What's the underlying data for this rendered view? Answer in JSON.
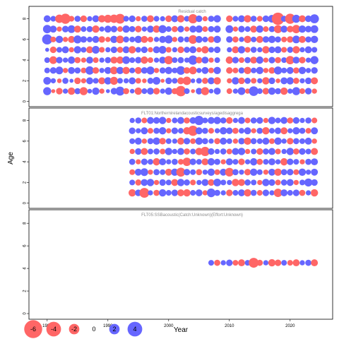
{
  "chart_data": {
    "type": "scatter",
    "variant": "bubble-residuals",
    "xlabel": "Year",
    "ylabel": "Age",
    "xlim": [
      1977,
      2027
    ],
    "x_ticks": [
      1980,
      1990,
      2000,
      2010,
      2020
    ],
    "ylim": [
      -0.5,
      9.2
    ],
    "y_ticks": [
      0,
      2,
      4,
      6,
      8
    ],
    "colors": {
      "positive": "#6666ff",
      "negative": "#ff6666"
    },
    "legend": {
      "placement": "bottom-left",
      "entries": [
        "-6",
        "-4",
        "-2",
        "0",
        "2",
        "4"
      ],
      "values": [
        -6,
        -4,
        -2,
        0,
        2,
        4
      ]
    },
    "panels": [
      {
        "title": "Residual catch",
        "years": [
          1980,
          1981,
          1982,
          1983,
          1984,
          1985,
          1986,
          1987,
          1988,
          1989,
          1990,
          1991,
          1992,
          1993,
          1994,
          1995,
          1996,
          1997,
          1998,
          1999,
          2000,
          2001,
          2002,
          2003,
          2004,
          2005,
          2006,
          2007,
          2008,
          2010,
          2011,
          2012,
          2013,
          2014,
          2015,
          2016,
          2017,
          2018,
          2019,
          2020,
          2021,
          2022,
          2023,
          2024
        ],
        "ages": [
          1,
          2,
          3,
          4,
          5,
          6,
          7,
          8
        ],
        "residuals": [
          [
            1.2,
            -0.3,
            -0.8,
            0.5,
            -1.0,
            0.7,
            -1.2,
            0.4,
            1.0,
            -0.5,
            0.3,
            0.8,
            1.5,
            -0.7,
            0.4,
            -1.0,
            0.6,
            0.9,
            -0.8,
            0.5,
            1.0,
            -0.7,
            -2.0,
            0.6,
            -0.3,
            0.8,
            -1.2,
            0.4,
            0.9,
            -0.6,
            0.5,
            1.1,
            -0.5,
            1.7,
            0.6,
            -0.8,
            1.0,
            0.7,
            -1.0,
            0.5,
            1.2,
            -0.6,
            0.8,
            -0.5
          ],
          [
            1.1,
            0.5,
            -0.4,
            0.7,
            0.3,
            -0.8,
            -0.5,
            0.9,
            0.6,
            -0.9,
            1.0,
            -1.2,
            0.6,
            0.5,
            0.9,
            -0.6,
            -0.4,
            0.7,
            1.1,
            -0.3,
            0.8,
            0.6,
            -0.9,
            -1.3,
            0.4,
            0.6,
            -0.7,
            0.9,
            -1.0,
            -0.5,
            1.0,
            -0.8,
            0.7,
            -0.6,
            0.5,
            -1.0,
            0.8,
            -0.4,
            0.9,
            1.0,
            -0.7,
            0.5,
            0.8,
            -0.9
          ],
          [
            0.6,
            0.8,
            1.1,
            -0.5,
            0.9,
            0.7,
            -0.6,
            1.3,
            -0.8,
            0.5,
            0.9,
            -1.1,
            1.0,
            -1.0,
            0.6,
            -0.9,
            0.8,
            1.2,
            -0.5,
            0.7,
            1.0,
            0.6,
            1.4,
            -0.8,
            -1.1,
            0.5,
            0.9,
            -0.6,
            1.0,
            -0.8,
            -0.6,
            0.7,
            -1.0,
            0.6,
            1.0,
            -0.5,
            -0.8,
            1.2,
            0.6,
            0.9,
            -0.7,
            1.0,
            0.5,
            0.8
          ],
          [
            0.6,
            -1.1,
            0.8,
            0.5,
            1.0,
            -0.7,
            -0.5,
            0.9,
            -0.6,
            0.5,
            0.7,
            -0.9,
            -1.0,
            1.1,
            0.6,
            0.8,
            -1.0,
            -0.6,
            0.5,
            0.9,
            -1.3,
            0.6,
            0.7,
            0.5,
            1.6,
            -0.8,
            0.9,
            -0.5,
            0.6,
            -1.0,
            0.8,
            -0.6,
            0.7,
            -0.9,
            1.0,
            -0.5,
            0.8,
            -0.7,
            0.6,
            -1.3,
            0.9,
            -0.8,
            0.5,
            1.2
          ],
          [
            0.3,
            -0.8,
            0.6,
            0.9,
            -0.5,
            1.0,
            0.6,
            -0.9,
            1.1,
            -0.6,
            0.5,
            0.8,
            -0.7,
            0.9,
            -1.0,
            0.6,
            0.8,
            -0.5,
            0.9,
            1.1,
            -0.6,
            0.5,
            -0.8,
            0.7,
            0.9,
            -0.5,
            -1.0,
            0.6,
            0.8,
            0.5,
            -0.9,
            1.0,
            -0.6,
            0.7,
            0.5,
            -1.0,
            0.8,
            0.9,
            -0.6,
            0.7,
            -1.0,
            0.5,
            0.9,
            0.6
          ],
          [
            1.9,
            -0.6,
            1.0,
            -0.5,
            -0.9,
            1.2,
            0.8,
            0.6,
            0.9,
            -0.8,
            -0.5,
            1.0,
            -1.1,
            0.7,
            0.6,
            1.0,
            -0.9,
            -0.6,
            0.5,
            0.9,
            1.2,
            -0.5,
            0.7,
            0.6,
            -1.4,
            0.9,
            0.6,
            -0.8,
            1.0,
            0.8,
            -0.7,
            0.5,
            -1.0,
            0.6,
            -0.9,
            0.8,
            1.0,
            0.7,
            -0.6,
            -0.8,
            1.1,
            -0.9,
            0.7,
            1.0
          ],
          [
            1.3,
            0.9,
            -0.5,
            0.8,
            1.1,
            -0.9,
            0.6,
            0.7,
            -1.0,
            0.5,
            0.9,
            0.8,
            -0.6,
            1.0,
            0.7,
            -0.8,
            0.5,
            0.9,
            -1.0,
            1.2,
            0.6,
            -0.7,
            0.8,
            -0.5,
            0.9,
            1.0,
            -0.6,
            0.7,
            0.9,
            1.1,
            -0.5,
            0.8,
            0.6,
            -0.9,
            1.0,
            -0.6,
            0.7,
            -1.2,
            0.9,
            -0.8,
            -1.3,
            1.0,
            0.8,
            1.1
          ],
          [
            0.9,
            0.6,
            -1.3,
            -1.9,
            -0.6,
            0.7,
            -0.8,
            0.5,
            0.9,
            -1.0,
            -1.2,
            -1.3,
            -1.8,
            0.6,
            0.8,
            -0.5,
            0.7,
            -0.9,
            0.6,
            0.5,
            -0.8,
            0.9,
            -1.0,
            0.6,
            -1.6,
            0.8,
            -0.5,
            0.7,
            1.0,
            -0.8,
            0.6,
            0.9,
            -1.0,
            0.7,
            -0.6,
            0.8,
            1.1,
            -2.8,
            0.7,
            -1.9,
            1.2,
            -0.9,
            0.8,
            1.5
          ]
        ]
      },
      {
        "title": "FLT01:Northernirelandacousticsurveys/agedisaggrega",
        "years": [
          1994,
          1995,
          1996,
          1997,
          1998,
          1999,
          2000,
          2001,
          2002,
          2003,
          2004,
          2005,
          2006,
          2007,
          2008,
          2009,
          2010,
          2011,
          2012,
          2013,
          2014,
          2015,
          2016,
          2017,
          2018,
          2019,
          2020,
          2021,
          2022,
          2023,
          2024
        ],
        "ages": [
          1,
          2,
          3,
          4,
          5,
          6,
          7,
          8
        ],
        "residuals": [
          [
            -1.0,
            0.8,
            -1.8,
            0.5,
            -0.7,
            1.0,
            0.6,
            0.8,
            -0.9,
            -1.0,
            0.6,
            0.9,
            -0.5,
            1.4,
            0.7,
            0.5,
            -0.8,
            0.6,
            0.9,
            -1.0,
            0.7,
            -0.6,
            0.8,
            0.5,
            -1.3,
            0.9,
            0.6,
            0.8,
            -0.7,
            0.5,
            -1.0
          ],
          [
            0.6,
            -0.7,
            0.9,
            1.0,
            -0.5,
            0.8,
            0.6,
            -0.9,
            1.0,
            0.7,
            -0.6,
            0.5,
            0.9,
            -0.8,
            1.1,
            0.6,
            0.5,
            -1.0,
            -0.9,
            0.7,
            0.6,
            -0.5,
            1.0,
            0.8,
            -0.6,
            0.7,
            0.9,
            -0.5,
            0.6,
            1.2,
            0.8
          ],
          [
            -0.6,
            0.9,
            1.1,
            -0.5,
            0.7,
            0.6,
            -0.9,
            1.0,
            -1.5,
            0.8,
            0.6,
            -0.7,
            0.5,
            1.0,
            -0.6,
            0.9,
            -1.4,
            0.7,
            0.5,
            -0.8,
            1.0,
            0.6,
            -0.5,
            0.9,
            -1.0,
            0.7,
            0.8,
            -0.6,
            1.0,
            0.5,
            0.9
          ],
          [
            0.7,
            -0.5,
            0.8,
            0.6,
            -1.0,
            0.9,
            0.5,
            0.7,
            -0.6,
            -1.3,
            0.8,
            0.6,
            -0.9,
            1.0,
            0.7,
            -0.5,
            0.9,
            0.6,
            -0.8,
            0.5,
            1.0,
            -0.7,
            0.6,
            0.9,
            0.5,
            -1.0,
            0.8,
            0.6,
            -0.5,
            0.7,
            0.9
          ],
          [
            -0.5,
            0.8,
            -0.9,
            0.6,
            0.7,
            -0.6,
            1.0,
            0.5,
            0.9,
            -0.7,
            0.6,
            -1.0,
            -1.6,
            0.8,
            0.5,
            0.7,
            -0.6,
            0.9,
            1.0,
            -0.5,
            0.6,
            -0.8,
            0.7,
            0.9,
            -0.6,
            0.5,
            1.0,
            -0.7,
            0.8,
            0.6,
            -0.9
          ],
          [
            0.6,
            0.9,
            -0.5,
            0.7,
            1.0,
            -0.8,
            0.6,
            0.5,
            -0.9,
            0.8,
            -0.6,
            1.0,
            0.7,
            0.5,
            -0.7,
            0.9,
            0.6,
            -0.5,
            0.8,
            -1.0,
            0.7,
            0.6,
            0.9,
            -0.6,
            1.0,
            0.5,
            -0.8,
            0.7,
            0.6,
            0.9,
            -0.5
          ],
          [
            0.8,
            0.5,
            0.9,
            -0.6,
            0.7,
            1.0,
            -0.5,
            0.8,
            0.6,
            -1.0,
            -1.9,
            0.9,
            0.7,
            -0.6,
            0.5,
            1.0,
            0.8,
            -0.7,
            0.6,
            0.9,
            -0.5,
            0.7,
            -1.0,
            0.6,
            0.8,
            -0.9,
            0.5,
            1.0,
            0.7,
            -0.6,
            0.9
          ],
          [
            0.5,
            0.7,
            -0.6,
            0.9,
            0.8,
            1.0,
            -0.5,
            0.6,
            0.9,
            -0.7,
            0.8,
            1.6,
            0.6,
            0.9,
            1.0,
            0.7,
            -0.8,
            0.5,
            0.9,
            -0.6,
            0.7,
            0.8,
            -0.5,
            1.0,
            0.6,
            0.9,
            -0.7,
            0.8,
            0.5,
            0.7,
            -0.6
          ]
        ]
      },
      {
        "title": "FLT05:SSBacoustic(Catch:Unknown)(Effort:Unknown)",
        "years": [
          2007,
          2008,
          2009,
          2010,
          2011,
          2012,
          2013,
          2014,
          2015,
          2016,
          2017,
          2018,
          2019,
          2020,
          2021,
          2022,
          2023,
          2024
        ],
        "ages": [
          4.5
        ],
        "residuals": [
          [
            0.6,
            -0.7,
            0.5,
            0.8,
            -0.6,
            -0.9,
            0.6,
            -1.8,
            -0.7,
            0.5,
            -1.0,
            -0.8,
            0.6,
            -0.6,
            -0.9,
            0.5,
            0.7,
            -0.9
          ]
        ]
      }
    ]
  }
}
